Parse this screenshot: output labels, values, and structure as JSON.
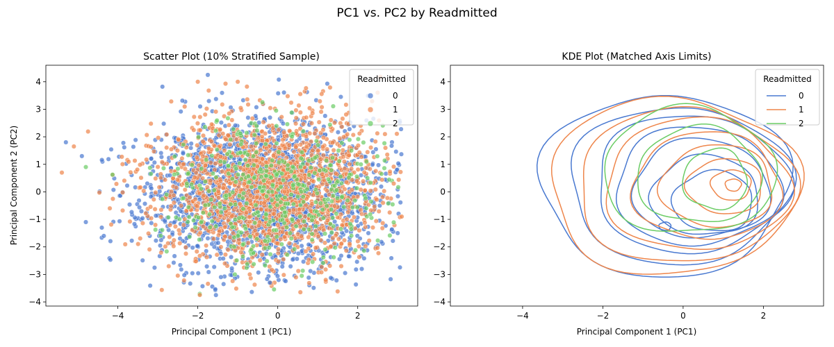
{
  "figure": {
    "suptitle": "PC1 vs. PC2 by Readmitted"
  },
  "palette": {
    "0": "#4878d0",
    "1": "#ee854a",
    "2": "#6acc64"
  },
  "chart_data": [
    {
      "type": "scatter",
      "title": "Scatter Plot (10% Stratified Sample)",
      "xlabel": "Principal Component 1 (PC1)",
      "ylabel": "Principal Component 2 (PC2)",
      "xlim": [
        -5.8,
        3.5
      ],
      "ylim": [
        -4.15,
        4.6
      ],
      "xticks": [
        -4,
        -2,
        0,
        2
      ],
      "yticks": [
        -4,
        -3,
        -2,
        -1,
        0,
        1,
        2,
        3,
        4
      ],
      "grid": false,
      "legend": {
        "title": "Readmitted",
        "position": "top-right",
        "entries": [
          "0",
          "1",
          "2"
        ]
      },
      "marker_alpha": 0.7,
      "series": [
        {
          "name": "0",
          "center": [
            -0.3,
            -0.1
          ],
          "spread": [
            1.45,
            1.35
          ],
          "count": 2200,
          "seed": 11
        },
        {
          "name": "1",
          "center": [
            -0.2,
            0.1
          ],
          "spread": [
            1.45,
            1.35
          ],
          "count": 1700,
          "seed": 23
        },
        {
          "name": "2",
          "center": [
            -0.1,
            0.1
          ],
          "spread": [
            1.3,
            1.3
          ],
          "count": 420,
          "seed": 37
        }
      ],
      "notable_points": [
        {
          "x": -5.4,
          "y": 0.7,
          "series": "1"
        },
        {
          "x": -5.3,
          "y": 1.8,
          "series": "0"
        },
        {
          "x": -5.1,
          "y": 1.65,
          "series": "1"
        },
        {
          "x": -4.9,
          "y": 1.3,
          "series": "0"
        },
        {
          "x": -4.8,
          "y": 0.9,
          "series": "2"
        },
        {
          "x": -4.8,
          "y": -1.1,
          "series": "0"
        },
        {
          "x": -4.4,
          "y": -1.3,
          "series": "0"
        },
        {
          "x": -4.35,
          "y": -1.6,
          "series": "0"
        },
        {
          "x": -4.2,
          "y": -0.6,
          "series": "1"
        },
        {
          "x": -1.75,
          "y": 4.25,
          "series": "0"
        },
        {
          "x": -1.0,
          "y": 4.0,
          "series": "1"
        },
        {
          "x": -2.0,
          "y": 4.0,
          "series": "1"
        },
        {
          "x": -1.95,
          "y": -3.75,
          "series": "1"
        },
        {
          "x": -0.2,
          "y": -3.3,
          "series": "0"
        },
        {
          "x": 2.1,
          "y": -2.8,
          "series": "0"
        },
        {
          "x": 3.1,
          "y": -0.9,
          "series": "1"
        },
        {
          "x": 3.0,
          "y": -1.5,
          "series": "0"
        },
        {
          "x": 2.9,
          "y": 0.3,
          "series": "1"
        },
        {
          "x": 2.8,
          "y": -0.75,
          "series": "1"
        },
        {
          "x": -0.7,
          "y": -3.0,
          "series": "1"
        },
        {
          "x": 0.6,
          "y": -3.05,
          "series": "2"
        },
        {
          "x": 1.2,
          "y": -3.2,
          "series": "1"
        }
      ]
    },
    {
      "type": "kde",
      "title": "KDE Plot (Matched Axis Limits)",
      "xlabel": "Principal Component 1 (PC1)",
      "ylabel": "",
      "xlim": [
        -5.8,
        3.5
      ],
      "ylim": [
        -4.15,
        4.6
      ],
      "xticks": [
        -4,
        -2,
        0,
        2
      ],
      "yticks": [
        -4,
        -3,
        -2,
        -1,
        0,
        1,
        2,
        3,
        4
      ],
      "grid": false,
      "legend": {
        "title": "Readmitted",
        "position": "top-right",
        "entries": [
          "0",
          "1",
          "2"
        ]
      },
      "series": [
        {
          "name": "0",
          "levels": [
            {
              "cx": -0.45,
              "cy": 0.25,
              "rx": 3.1,
              "ry": 3.3
            },
            {
              "cx": -0.1,
              "cy": 0.25,
              "rx": 2.75,
              "ry": 2.85
            },
            {
              "cx": 0.2,
              "cy": 0.3,
              "rx": 2.4,
              "ry": 2.5
            },
            {
              "cx": 0.35,
              "cy": 0.2,
              "rx": 2.05,
              "ry": 2.15
            },
            {
              "cx": 0.45,
              "cy": 0.1,
              "rx": 1.7,
              "ry": 1.8
            },
            {
              "cx": 0.55,
              "cy": -0.15,
              "rx": 1.35,
              "ry": 1.45
            },
            {
              "cx": 0.75,
              "cy": -0.35,
              "rx": 1.0,
              "ry": 1.1
            },
            {
              "cx": -0.45,
              "cy": -1.25,
              "rx": 0.15,
              "ry": 0.15
            }
          ]
        },
        {
          "name": "1",
          "levels": [
            {
              "cx": -0.25,
              "cy": 0.2,
              "rx": 3.1,
              "ry": 3.2
            },
            {
              "cx": 0.05,
              "cy": 0.2,
              "rx": 2.7,
              "ry": 2.8
            },
            {
              "cx": 0.35,
              "cy": 0.25,
              "rx": 2.3,
              "ry": 2.4
            },
            {
              "cx": 0.6,
              "cy": 0.2,
              "rx": 1.85,
              "ry": 1.95
            },
            {
              "cx": 0.85,
              "cy": 0.2,
              "rx": 1.4,
              "ry": 1.5
            },
            {
              "cx": 1.05,
              "cy": 0.2,
              "rx": 0.95,
              "ry": 1.0
            },
            {
              "cx": 1.2,
              "cy": 0.25,
              "rx": 0.5,
              "ry": 0.55
            },
            {
              "cx": 1.25,
              "cy": 0.25,
              "rx": 0.2,
              "ry": 0.22
            }
          ]
        },
        {
          "name": "2",
          "levels": [
            {
              "cx": 0.15,
              "cy": 0.75,
              "rx": 2.15,
              "ry": 2.3
            },
            {
              "cx": 0.4,
              "cy": 0.6,
              "rx": 1.55,
              "ry": 1.75
            },
            {
              "cx": 0.8,
              "cy": 0.45,
              "rx": 0.8,
              "ry": 1.1
            }
          ]
        }
      ]
    }
  ]
}
